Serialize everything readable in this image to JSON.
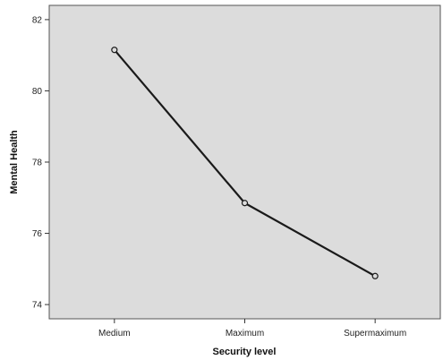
{
  "chart_data": {
    "type": "line",
    "categories": [
      "Medium",
      "Maximum",
      "Supermaximum"
    ],
    "values": [
      81.15,
      76.85,
      74.8
    ],
    "xlabel": "Security level",
    "ylabel": "Mental Health",
    "ylim": [
      73.6,
      82.4
    ],
    "yticks": [
      74,
      76,
      78,
      80,
      82
    ],
    "grid": false,
    "colors": {
      "plot_background": "#dcdcdc",
      "line": "#1a1a1a",
      "marker_fill": "#dcdcdc"
    }
  }
}
